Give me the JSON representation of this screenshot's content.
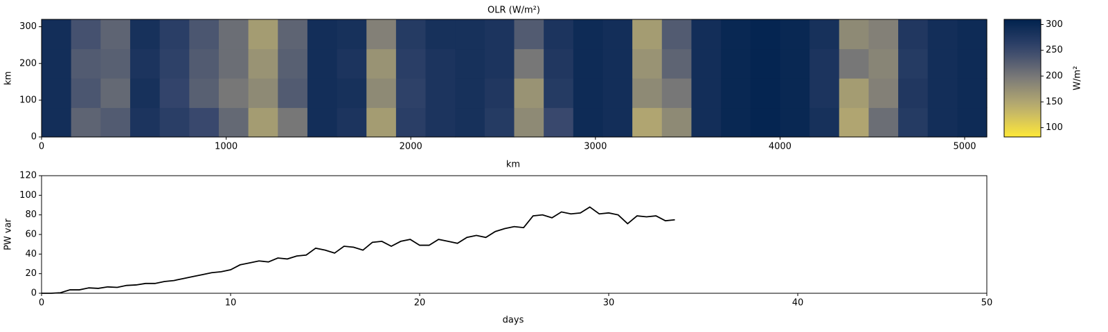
{
  "chart_data": [
    {
      "type": "heatmap",
      "title": "OLR (W/m²)",
      "xlabel": "km",
      "ylabel": "km",
      "xlim": [
        0,
        5120
      ],
      "ylim": [
        0,
        320
      ],
      "xticks": [
        0,
        1000,
        2000,
        3000,
        4000,
        5000
      ],
      "yticks": [
        0,
        100,
        200,
        300
      ],
      "colormap": "cividis_r",
      "clim": [
        82,
        310
      ],
      "colorbar_label": "W/m²",
      "colorbar_ticks": [
        100,
        150,
        200,
        250,
        300
      ],
      "z": [
        [
          290,
          220,
          230,
          280,
          265,
          250,
          215,
          160,
          200,
          290,
          280,
          160,
          265,
          280,
          285,
          270,
          180,
          250,
          295,
          290,
          150,
          180,
          290,
          300,
          305,
          300,
          285,
          150,
          210,
          270,
          290,
          295
        ],
        [
          290,
          235,
          215,
          285,
          255,
          225,
          200,
          180,
          230,
          290,
          285,
          180,
          260,
          280,
          285,
          275,
          170,
          270,
          295,
          290,
          180,
          200,
          290,
          300,
          305,
          300,
          280,
          160,
          190,
          275,
          290,
          295
        ],
        [
          290,
          230,
          225,
          280,
          260,
          230,
          210,
          170,
          225,
          290,
          280,
          170,
          265,
          280,
          285,
          280,
          200,
          275,
          295,
          290,
          170,
          220,
          290,
          300,
          305,
          300,
          280,
          200,
          185,
          270,
          290,
          295
        ],
        [
          290,
          240,
          220,
          285,
          265,
          235,
          210,
          160,
          220,
          290,
          285,
          190,
          270,
          285,
          285,
          280,
          230,
          280,
          295,
          290,
          160,
          230,
          290,
          300,
          305,
          300,
          285,
          180,
          190,
          275,
          290,
          295
        ]
      ]
    },
    {
      "type": "line",
      "xlabel": "days",
      "ylabel": "PW var",
      "xlim": [
        0,
        50
      ],
      "ylim": [
        0,
        120
      ],
      "xticks": [
        0,
        10,
        20,
        30,
        40,
        50
      ],
      "yticks": [
        0,
        20,
        40,
        60,
        80,
        100,
        120
      ],
      "color": "#000000",
      "x": [
        0,
        0.5,
        1,
        1.5,
        2,
        2.5,
        3,
        3.5,
        4,
        4.5,
        5,
        5.5,
        6,
        6.5,
        7,
        7.5,
        8,
        8.5,
        9,
        9.5,
        10,
        10.5,
        11,
        11.5,
        12,
        12.5,
        13,
        13.5,
        14,
        14.5,
        15,
        15.5,
        16,
        16.5,
        17,
        17.5,
        18,
        18.5,
        19,
        19.5,
        20,
        20.5,
        21,
        21.5,
        22,
        22.5,
        23,
        23.5,
        24,
        24.5,
        25,
        25.5,
        26,
        26.5,
        27,
        27.5,
        28,
        28.5,
        29,
        29.5,
        30,
        30.5,
        31,
        31.5,
        32,
        32.5,
        33,
        33.5
      ],
      "values": [
        0,
        0,
        0.5,
        3.5,
        3.5,
        5.5,
        5,
        6.5,
        6,
        8,
        8.5,
        10,
        10,
        12,
        13,
        15,
        17,
        19,
        21,
        22,
        24,
        29,
        31,
        33,
        32,
        36,
        35,
        38,
        39,
        46,
        44,
        41,
        48,
        47,
        44,
        52,
        53,
        48,
        53,
        55,
        49,
        49,
        55,
        53,
        51,
        57,
        59,
        57,
        63,
        66,
        68,
        67,
        79,
        80,
        77,
        83,
        81,
        82,
        88,
        81,
        82,
        80,
        71,
        79,
        78,
        79,
        74,
        75
      ]
    }
  ]
}
